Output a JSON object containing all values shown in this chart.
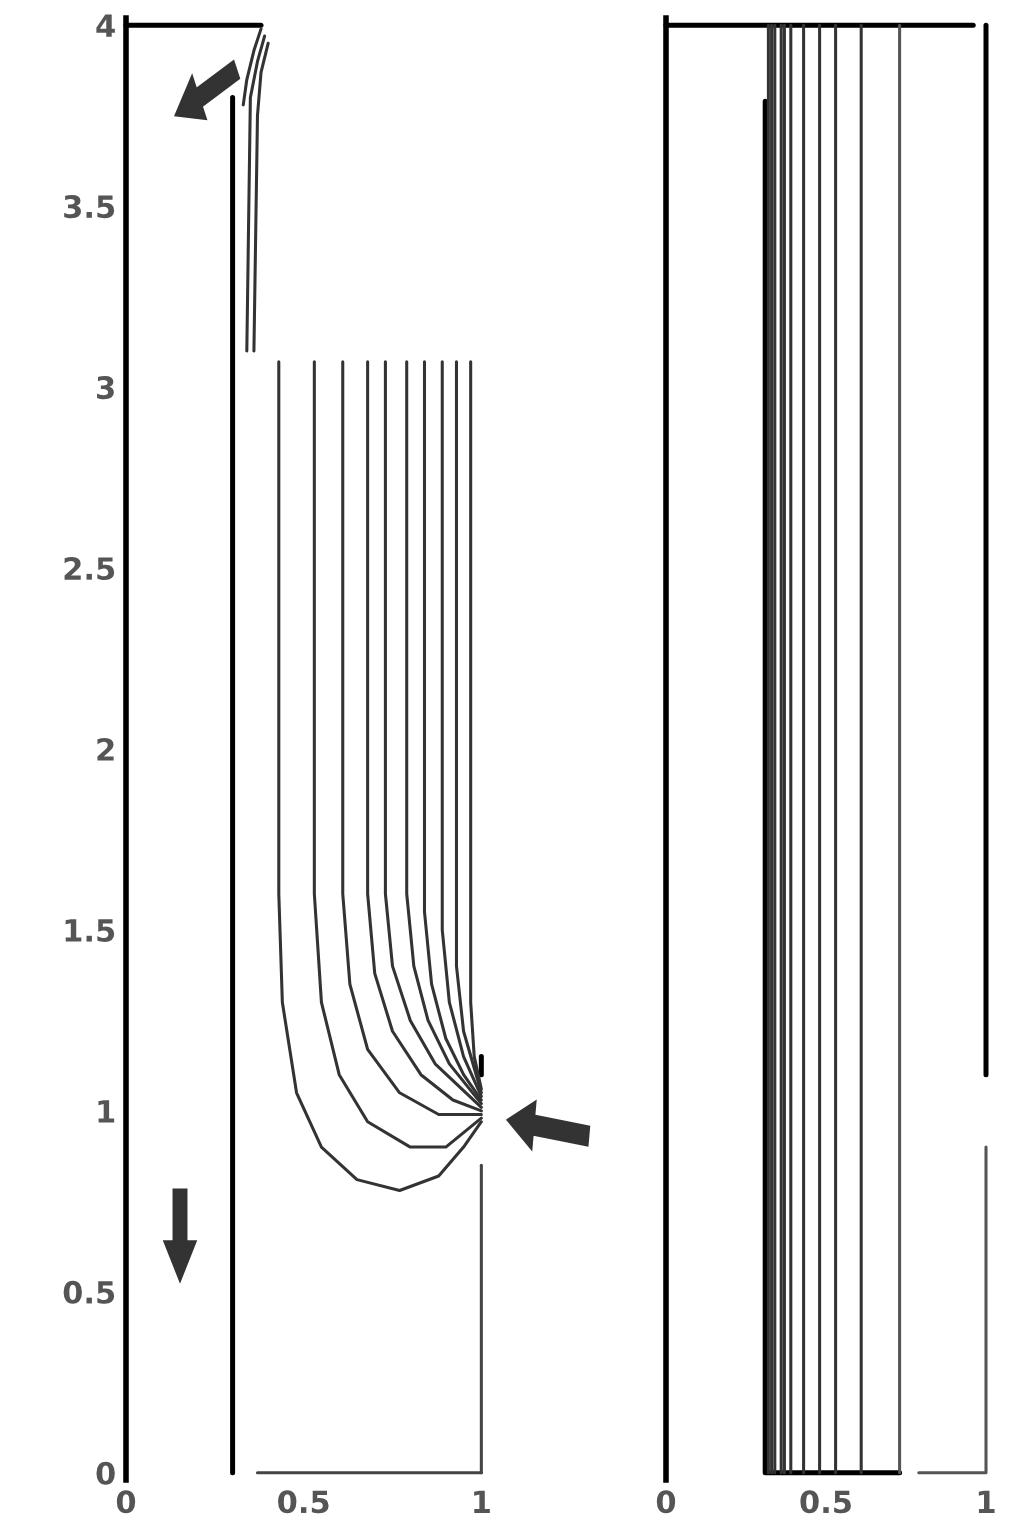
{
  "chart_data": [
    {
      "type": "line",
      "xlim": [
        0,
        1.03
      ],
      "ylim": [
        -0.02,
        4.02
      ],
      "xticks": [
        0,
        0.5,
        1
      ],
      "yticks": [
        0,
        0.5,
        1,
        1.5,
        2,
        2.5,
        3,
        3.5,
        4
      ],
      "grid": false,
      "legend": false,
      "line_style": "solid",
      "marker": "none",
      "series": [
        {
          "color": "#000000",
          "x": [
            0.3,
            0.3
          ],
          "values": [
            0,
            3.8
          ]
        },
        {
          "color": "#000000",
          "x": [
            0,
            0.38
          ],
          "values": [
            4,
            4
          ]
        },
        {
          "color": "#444444",
          "x": [
            0.37,
            1
          ],
          "values": [
            0,
            0
          ]
        },
        {
          "color": "#444444",
          "x": [
            1,
            1
          ],
          "values": [
            0,
            0.85
          ]
        },
        {
          "color": "#000000",
          "x": [
            1,
            1
          ],
          "values": [
            1.1,
            1.15
          ]
        },
        {
          "color": "#333333",
          "x": [
            0.38,
            0.36,
            0.34,
            0.33
          ],
          "values": [
            3.99,
            3.93,
            3.85,
            3.78
          ]
        },
        {
          "color": "#333333",
          "x": [
            0.39,
            0.37,
            0.35,
            0.34
          ],
          "values": [
            3.97,
            3.9,
            3.8,
            3.1
          ]
        },
        {
          "color": "#333333",
          "x": [
            0.4,
            0.38,
            0.37,
            0.36
          ],
          "values": [
            3.95,
            3.87,
            3.75,
            3.1
          ]
        },
        {
          "color": "#333333",
          "x": [
            0.43,
            0.43,
            0.44,
            0.48,
            0.55,
            0.65,
            0.77,
            0.88,
            0.95,
            1.0
          ],
          "values": [
            3.07,
            1.6,
            1.3,
            1.05,
            0.9,
            0.81,
            0.78,
            0.82,
            0.9,
            0.97
          ]
        },
        {
          "color": "#333333",
          "x": [
            0.53,
            0.53,
            0.55,
            0.6,
            0.68,
            0.8,
            0.9,
            1.0
          ],
          "values": [
            3.07,
            1.6,
            1.3,
            1.1,
            0.97,
            0.9,
            0.9,
            0.98
          ]
        },
        {
          "color": "#333333",
          "x": [
            0.61,
            0.61,
            0.63,
            0.68,
            0.77,
            0.88,
            1.0
          ],
          "values": [
            3.07,
            1.6,
            1.35,
            1.17,
            1.05,
            0.99,
            0.99
          ]
        },
        {
          "color": "#333333",
          "x": [
            0.68,
            0.68,
            0.7,
            0.75,
            0.83,
            0.92,
            1.0
          ],
          "values": [
            3.07,
            1.6,
            1.38,
            1.22,
            1.1,
            1.03,
            1.0
          ]
        },
        {
          "color": "#333333",
          "x": [
            0.73,
            0.73,
            0.75,
            0.8,
            0.87,
            1.0
          ],
          "values": [
            3.07,
            1.6,
            1.4,
            1.25,
            1.13,
            1.01
          ]
        },
        {
          "color": "#333333",
          "x": [
            0.79,
            0.79,
            0.81,
            0.85,
            0.91,
            1.0
          ],
          "values": [
            3.07,
            1.6,
            1.4,
            1.25,
            1.13,
            1.02
          ]
        },
        {
          "color": "#333333",
          "x": [
            0.84,
            0.84,
            0.86,
            0.9,
            0.95,
            1.0
          ],
          "values": [
            3.07,
            1.55,
            1.35,
            1.2,
            1.1,
            1.03
          ]
        },
        {
          "color": "#333333",
          "x": [
            0.89,
            0.89,
            0.91,
            0.95,
            1.0
          ],
          "values": [
            3.07,
            1.5,
            1.3,
            1.15,
            1.04
          ]
        },
        {
          "color": "#333333",
          "x": [
            0.93,
            0.93,
            0.95,
            1.0
          ],
          "values": [
            3.07,
            1.4,
            1.22,
            1.05
          ]
        },
        {
          "color": "#333333",
          "x": [
            0.97,
            0.97,
            0.98,
            1.0
          ],
          "values": [
            3.07,
            1.3,
            1.15,
            1.06
          ]
        }
      ]
    },
    {
      "type": "line",
      "xlim": [
        0,
        1
      ],
      "ylim": [
        -0.02,
        4.02
      ],
      "xticks": [
        0,
        0.5,
        1
      ],
      "yticks": [
        0,
        0.5,
        1,
        1.5,
        2,
        2.5,
        3,
        3.5,
        4
      ],
      "tick_labels": "x",
      "grid": false,
      "legend": false,
      "line_style": "solid",
      "marker": "none",
      "series": [
        {
          "color": "#000000",
          "x": [
            0,
            0.96
          ],
          "values": [
            4,
            4
          ]
        },
        {
          "color": "#000000",
          "x": [
            0.31,
            0.31,
            0.73
          ],
          "values": [
            3.79,
            0,
            0
          ]
        },
        {
          "color": "#000000",
          "x": [
            1,
            1
          ],
          "values": [
            1.1,
            4
          ]
        },
        {
          "color": "#555555",
          "x": [
            0.79,
            1,
            1
          ],
          "values": [
            0,
            0,
            0.9
          ]
        },
        {
          "color": "#333333",
          "x": [
            0.32,
            0.32
          ],
          "values": [
            0,
            4
          ]
        },
        {
          "color": "#333333",
          "x": [
            0.33,
            0.33
          ],
          "values": [
            0,
            4
          ]
        },
        {
          "color": "#333333",
          "x": [
            0.34,
            0.34
          ],
          "values": [
            0,
            4
          ]
        },
        {
          "color": "#333333",
          "x": [
            0.36,
            0.36
          ],
          "values": [
            0,
            4
          ]
        },
        {
          "color": "#333333",
          "x": [
            0.37,
            0.37
          ],
          "values": [
            0,
            4
          ]
        },
        {
          "color": "#333333",
          "x": [
            0.39,
            0.39
          ],
          "values": [
            0,
            4
          ]
        },
        {
          "color": "#333333",
          "x": [
            0.43,
            0.43
          ],
          "values": [
            0,
            4
          ]
        },
        {
          "color": "#333333",
          "x": [
            0.48,
            0.48
          ],
          "values": [
            0,
            4
          ]
        },
        {
          "color": "#333333",
          "x": [
            0.53,
            0.53
          ],
          "values": [
            0,
            4
          ]
        },
        {
          "color": "#333333",
          "x": [
            0.61,
            0.61
          ],
          "values": [
            0,
            4
          ]
        },
        {
          "color": "#555555",
          "x": [
            0.73,
            0.73
          ],
          "values": [
            0,
            4
          ]
        }
      ]
    }
  ]
}
